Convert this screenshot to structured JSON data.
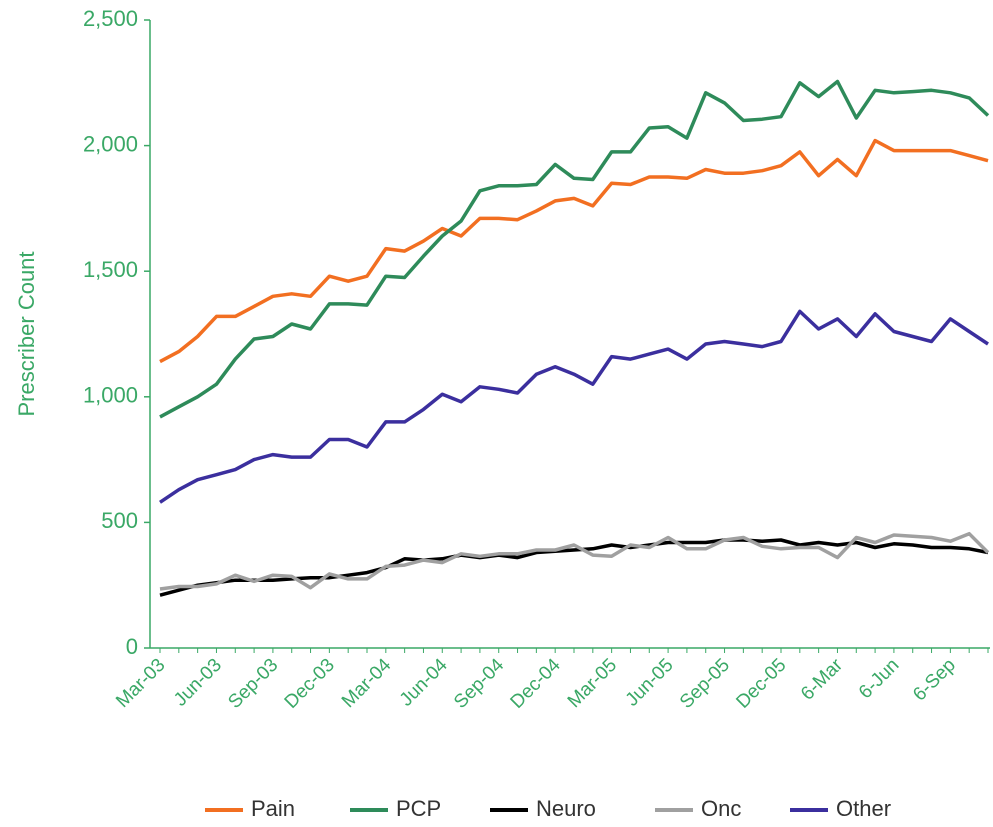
{
  "chart_data": {
    "type": "line",
    "y_label": "Prescriber Count",
    "categories": [
      "Mar-03",
      null,
      null,
      "Jun-03",
      null,
      null,
      "Sep-03",
      null,
      null,
      "Dec-03",
      null,
      null,
      "Mar-04",
      null,
      null,
      "Jun-04",
      null,
      null,
      "Sep-04",
      null,
      null,
      "Dec-04",
      null,
      null,
      "Mar-05",
      null,
      null,
      "Jun-05",
      null,
      null,
      "Sep-05",
      null,
      null,
      "Dec-05",
      null,
      null,
      "6-Mar",
      null,
      null,
      "6-Jun",
      null,
      null,
      "6-Sep",
      null,
      null
    ],
    "series": [
      {
        "name": "Pain",
        "color": "#f26f21",
        "values": [
          1140,
          1180,
          1240,
          1320,
          1320,
          1360,
          1400,
          1410,
          1400,
          1480,
          1460,
          1480,
          1590,
          1580,
          1620,
          1670,
          1640,
          1710,
          1710,
          1705,
          1740,
          1780,
          1790,
          1760,
          1850,
          1845,
          1875,
          1875,
          1870,
          1905,
          1890,
          1890,
          1900,
          1920,
          1975,
          1880,
          1945,
          1880,
          2020,
          1980,
          1980,
          1980,
          1980,
          1960,
          1940
        ]
      },
      {
        "name": "PCP",
        "color": "#2e8b5a",
        "values": [
          920,
          960,
          1000,
          1050,
          1150,
          1230,
          1240,
          1290,
          1270,
          1370,
          1370,
          1365,
          1480,
          1475,
          1560,
          1640,
          1700,
          1820,
          1840,
          1840,
          1845,
          1925,
          1870,
          1865,
          1975,
          1975,
          2070,
          2075,
          2030,
          2210,
          2170,
          2100,
          2105,
          2115,
          2250,
          2195,
          2255,
          2110,
          2220,
          2210,
          2215,
          2220,
          2210,
          2190,
          2120
        ]
      },
      {
        "name": "Neuro",
        "color": "#000000",
        "values": [
          210,
          230,
          250,
          260,
          270,
          270,
          270,
          275,
          280,
          280,
          290,
          300,
          320,
          355,
          350,
          355,
          370,
          360,
          370,
          360,
          380,
          385,
          390,
          395,
          410,
          400,
          410,
          420,
          420,
          420,
          430,
          430,
          425,
          430,
          410,
          420,
          410,
          420,
          400,
          415,
          410,
          400,
          400,
          395,
          380
        ]
      },
      {
        "name": "Onc",
        "color": "#a0a0a0",
        "values": [
          235,
          245,
          245,
          255,
          290,
          265,
          290,
          285,
          240,
          295,
          275,
          275,
          325,
          330,
          350,
          340,
          375,
          365,
          375,
          375,
          390,
          390,
          410,
          370,
          365,
          410,
          400,
          440,
          395,
          395,
          430,
          440,
          405,
          395,
          400,
          400,
          360,
          440,
          420,
          450,
          445,
          440,
          425,
          455,
          380
        ]
      },
      {
        "name": "Other",
        "color": "#3b2f9e",
        "values": [
          580,
          630,
          670,
          690,
          710,
          750,
          770,
          760,
          760,
          830,
          830,
          800,
          900,
          900,
          950,
          1010,
          980,
          1040,
          1030,
          1015,
          1090,
          1120,
          1090,
          1050,
          1160,
          1150,
          1170,
          1190,
          1150,
          1210,
          1220,
          1210,
          1200,
          1220,
          1340,
          1270,
          1310,
          1240,
          1330,
          1260,
          1240,
          1220,
          1310,
          1260,
          1210
        ]
      }
    ],
    "ylim": [
      0,
      2500
    ],
    "yticks": [
      0,
      500,
      {
        "value": 1000,
        "label": "1,000"
      },
      {
        "value": 1500,
        "label": "1,500"
      },
      {
        "value": 2000,
        "label": "2,000"
      },
      {
        "value": 2500,
        "label": "2,500"
      }
    ],
    "legend": "bottom"
  }
}
